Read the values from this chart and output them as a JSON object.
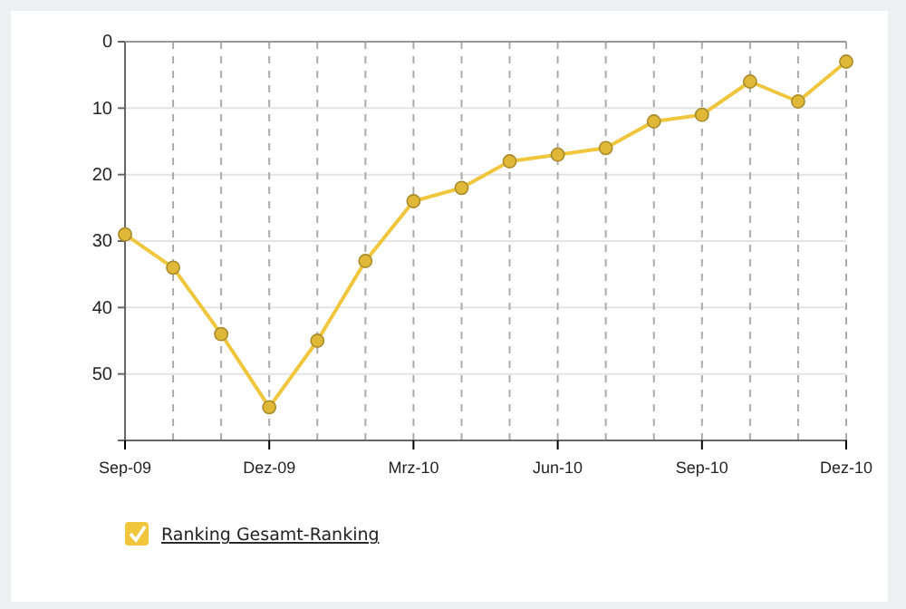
{
  "chart_data": {
    "type": "line",
    "categories": [
      "Sep-09",
      null,
      null,
      "Dez-09",
      null,
      null,
      "Mrz-10",
      null,
      null,
      "Jun-10",
      null,
      null,
      "Sep-10",
      null,
      null,
      "Dez-10"
    ],
    "series": [
      {
        "name": "Ranking Gesamt-Ranking",
        "color": "#f0c63c",
        "values": [
          29,
          34,
          44,
          55,
          45,
          33,
          24,
          22,
          18,
          17,
          16,
          12,
          11,
          6,
          9,
          3
        ]
      }
    ],
    "ylim": [
      60,
      0
    ],
    "yticks": [
      0,
      10,
      20,
      30,
      40,
      50
    ],
    "grid": true,
    "legend": "bottom left",
    "marker": "circle",
    "line_style": "solid"
  }
}
